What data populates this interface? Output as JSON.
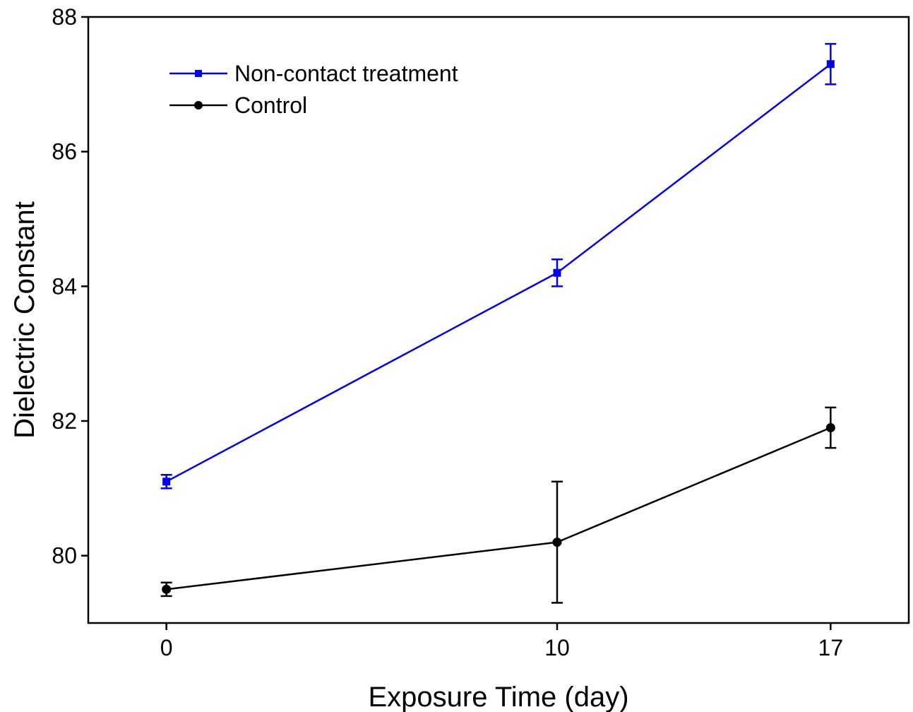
{
  "chart_data": {
    "type": "line",
    "xlabel": "Exposure Time (day)",
    "ylabel": "Dielectric Constant",
    "x": [
      0,
      10,
      17
    ],
    "x_ticks": [
      "0",
      "10",
      "17"
    ],
    "y_ticks": [
      "80",
      "82",
      "84",
      "86",
      "88"
    ],
    "xlim": [
      -2,
      19
    ],
    "ylim": [
      79.0,
      88.0
    ],
    "grid": false,
    "legend_position": "top-left",
    "series": [
      {
        "name": "Non-contact treatment",
        "color": "#0000ee",
        "marker": "square",
        "values": [
          81.1,
          84.2,
          87.3
        ],
        "errors": [
          0.1,
          0.2,
          0.3
        ]
      },
      {
        "name": "Control",
        "color": "#000000",
        "marker": "circle",
        "values": [
          79.5,
          80.2,
          81.9
        ],
        "errors": [
          0.1,
          0.9,
          0.3
        ]
      }
    ]
  }
}
